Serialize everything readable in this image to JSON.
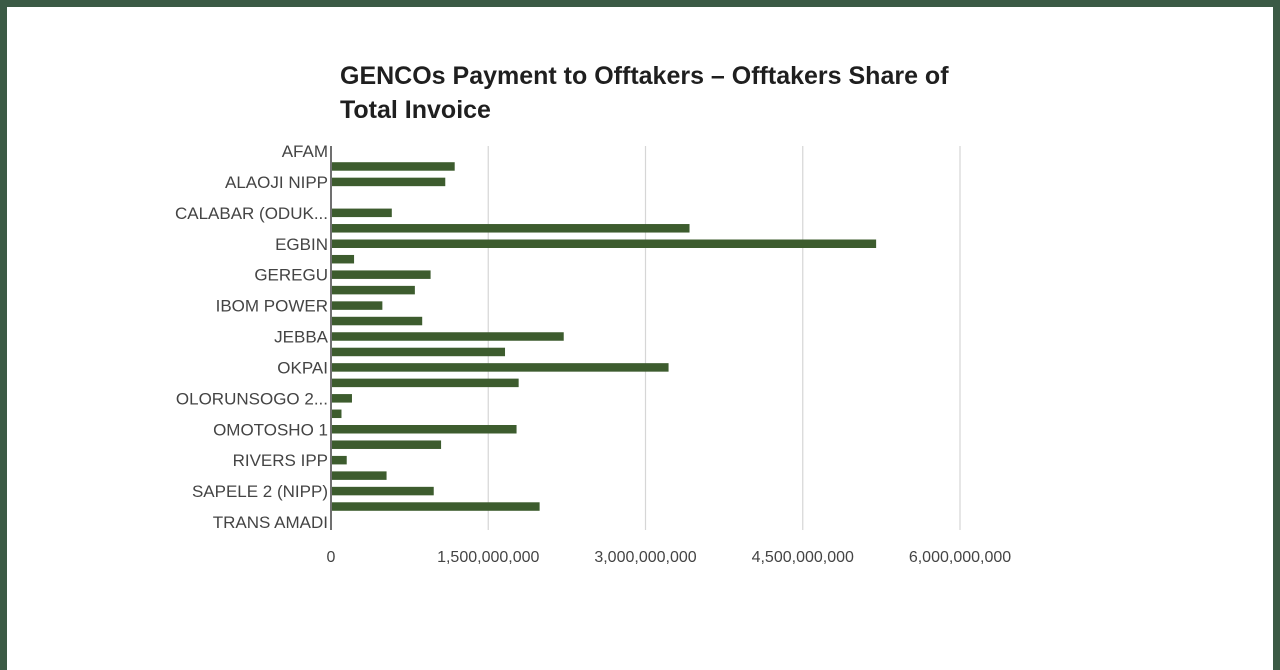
{
  "chart_data": {
    "type": "bar",
    "orientation": "horizontal",
    "title": "GENCOs Payment to Offtakers – Offtakers Share of Total Invoice",
    "xlabel": "",
    "ylabel": "",
    "xlim": [
      0,
      6000000000
    ],
    "x_ticks": [
      0,
      1500000000,
      3000000000,
      4500000000,
      6000000000
    ],
    "x_tick_labels": [
      "0",
      "1,500,000,000",
      "3,000,000,000",
      "4,500,000,000",
      "6,000,000,000"
    ],
    "grid": "vertical",
    "legend": "none",
    "bar_color": "#3d5c2e",
    "categories": [
      "AFAM",
      "",
      "ALAOJI NIPP",
      "",
      "CALABAR (ODUK...",
      "",
      "EGBIN",
      "",
      "GEREGU",
      "",
      "IBOM POWER",
      "",
      "JEBBA",
      "",
      "OKPAI",
      "",
      "OLORUNSOGO 2...",
      "",
      "OMOTOSHO 1",
      "",
      "RIVERS IPP",
      "",
      "SAPELE 2 (NIPP)",
      "",
      "TRANS AMADI"
    ],
    "values": [
      0,
      1180000000,
      1090000000,
      0,
      580000000,
      3420000000,
      5200000000,
      220000000,
      950000000,
      800000000,
      490000000,
      870000000,
      2220000000,
      1660000000,
      3220000000,
      1790000000,
      200000000,
      100000000,
      1770000000,
      1050000000,
      150000000,
      530000000,
      980000000,
      1990000000,
      0
    ]
  }
}
